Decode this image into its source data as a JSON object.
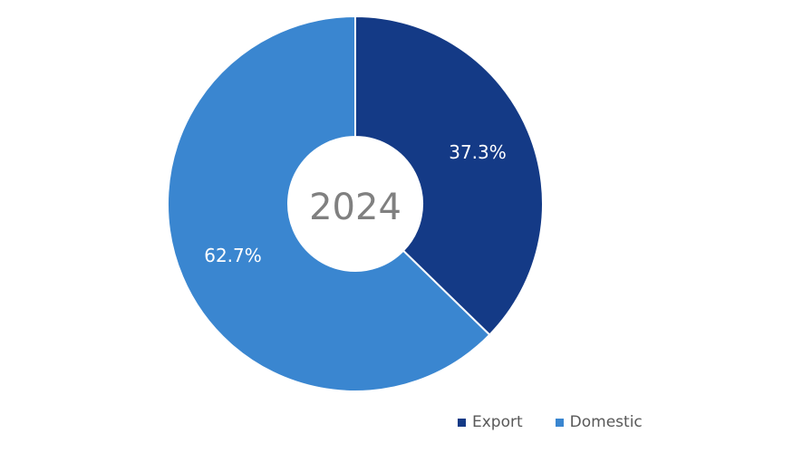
{
  "chart_data": {
    "type": "pie",
    "style": "donut",
    "center_label": "2024",
    "categories": [
      "Export",
      "Domestic"
    ],
    "values": [
      37.3,
      62.7
    ],
    "value_labels": [
      "37.3%",
      "62.7%"
    ],
    "colors": [
      "#143a86",
      "#3a86d0"
    ],
    "legend_position": "bottom-right",
    "start_angle_deg": 0,
    "direction": "clockwise"
  }
}
